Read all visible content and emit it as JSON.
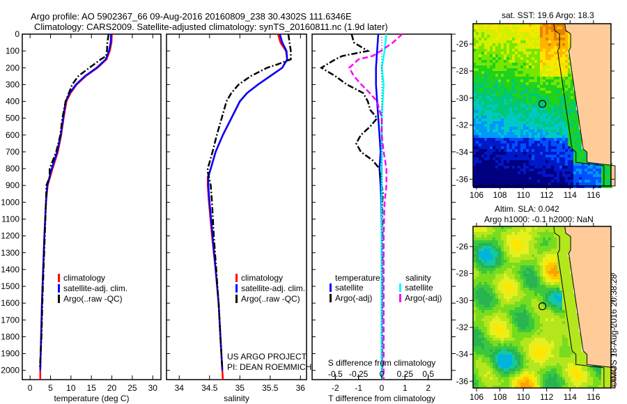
{
  "header": {
    "title_line1": "Argo profile: AO 5902367_66 09-Aug-2016 20160809_238 30.4302S 111.6346E",
    "title_line2": "Climatology: CARS2009. Satellite-adjusted climatology: synTS_20160811.nc (1.9d later)"
  },
  "colors": {
    "climatology": "#ff0000",
    "satellite": "#0000ff",
    "argo": "#000000",
    "sal_satellite": "#00ffff",
    "sal_argo": "#ff00ff",
    "land": "#ffcc99"
  },
  "chart_data": [
    {
      "type": "line",
      "title": "",
      "xlabel": "temperature (deg C)",
      "ylabel": "",
      "xlim": [
        -1.9,
        32.0
      ],
      "ylim": [
        2055,
        0
      ],
      "xticks": [
        0,
        5,
        10,
        15,
        20,
        25,
        30
      ],
      "yticks": [
        0,
        100,
        200,
        300,
        400,
        500,
        600,
        700,
        800,
        900,
        1000,
        1100,
        1200,
        1300,
        1400,
        1500,
        1600,
        1700,
        1800,
        1900,
        2000
      ],
      "legend": {
        "position": "center",
        "entries": [
          "climatology",
          "satellite-adj. clim.",
          "Argo(..raw -QC)"
        ]
      },
      "series": [
        {
          "name": "climatology",
          "style": "solid",
          "depth": [
            0,
            50,
            100,
            150,
            200,
            250,
            300,
            350,
            400,
            500,
            600,
            700,
            800,
            900,
            1000,
            1200,
            1400,
            1600,
            1800,
            2000,
            2055
          ],
          "values": [
            20.0,
            19.9,
            19.5,
            18.7,
            16.5,
            13.6,
            11.4,
            9.9,
            8.9,
            8.2,
            7.6,
            6.8,
            5.5,
            4.3,
            3.9,
            3.5,
            3.2,
            2.9,
            2.7,
            2.5,
            2.5
          ]
        },
        {
          "name": "satellite-adj. clim.",
          "style": "solid",
          "depth": [
            0,
            50,
            100,
            150,
            200,
            250,
            300,
            350,
            400,
            500,
            600,
            700,
            800,
            900,
            1000,
            1200,
            1400,
            1600,
            1800,
            2000
          ],
          "values": [
            19.8,
            19.7,
            19.3,
            18.5,
            16.3,
            13.4,
            11.2,
            9.7,
            8.7,
            8.1,
            7.5,
            6.6,
            5.3,
            4.2,
            3.9,
            3.5,
            3.2,
            2.9,
            2.7,
            2.5
          ]
        },
        {
          "name": "Argo(..raw -QC)",
          "style": "dashdot",
          "depth": [
            0,
            50,
            100,
            130,
            150,
            200,
            250,
            300,
            350,
            400,
            500,
            600,
            700,
            750,
            800,
            850,
            900,
            1000,
            1200,
            1400,
            1600,
            1800,
            1990
          ],
          "values": [
            19.2,
            18.9,
            18.8,
            18.6,
            17.3,
            14.5,
            11.8,
            10.3,
            9.5,
            8.7,
            7.9,
            7.4,
            6.4,
            5.6,
            4.8,
            4.8,
            4.0,
            3.9,
            3.6,
            3.3,
            3.0,
            2.8,
            2.4
          ]
        }
      ]
    },
    {
      "type": "line",
      "title": "",
      "xlabel": "salinity",
      "ylabel": "",
      "xlim": [
        33.79,
        36.1
      ],
      "ylim": [
        2055,
        0
      ],
      "xticks": [
        34,
        34.5,
        35,
        35.5,
        36
      ],
      "legend": {
        "position": "center-right",
        "entries": [
          "climatology",
          "satellite-adj. clim.",
          "Argo(..raw -QC)"
        ]
      },
      "annotation": [
        "US ARGO PROJECT",
        "PI: DEAN ROEMMICH"
      ],
      "series": [
        {
          "name": "climatology",
          "style": "solid",
          "depth": [
            0,
            50,
            100,
            150,
            200,
            250,
            300,
            350,
            400,
            500,
            600,
            700,
            800,
            850,
            900,
            1000,
            1200,
            1400,
            1600,
            1800,
            2000,
            2055
          ],
          "values": [
            35.63,
            35.67,
            35.76,
            35.78,
            35.7,
            35.5,
            35.3,
            35.12,
            35.0,
            34.86,
            34.72,
            34.6,
            34.52,
            34.47,
            34.47,
            34.49,
            34.54,
            34.6,
            34.65,
            34.68,
            34.71,
            34.72
          ]
        },
        {
          "name": "satellite-adj. clim.",
          "style": "solid",
          "depth": [
            0,
            50,
            100,
            150,
            200,
            250,
            300,
            350,
            400,
            500,
            600,
            700,
            800,
            850,
            900,
            1000,
            1200,
            1400,
            1600,
            1800,
            2000
          ],
          "values": [
            35.66,
            35.7,
            35.77,
            35.78,
            35.7,
            35.5,
            35.3,
            35.12,
            35.0,
            34.86,
            34.72,
            34.6,
            34.52,
            34.48,
            34.48,
            34.5,
            34.55,
            34.6,
            34.65,
            34.68,
            34.71
          ]
        },
        {
          "name": "Argo(..raw -QC)",
          "style": "dashdot",
          "depth": [
            0,
            50,
            100,
            150,
            180,
            200,
            250,
            300,
            350,
            400,
            500,
            600,
            700,
            800,
            820,
            850,
            900,
            1000,
            1200,
            1400,
            1600,
            1800,
            1990
          ],
          "values": [
            35.8,
            35.82,
            35.84,
            35.84,
            35.62,
            35.45,
            35.18,
            34.98,
            34.86,
            34.78,
            34.7,
            34.62,
            34.55,
            34.47,
            34.47,
            34.49,
            34.52,
            34.54,
            34.57,
            34.61,
            34.65,
            34.68,
            34.71
          ]
        }
      ]
    },
    {
      "type": "line",
      "title": "",
      "xlabel": "T difference from climatology",
      "xlabel_top": "S difference from climatology",
      "xlim": [
        -3.0,
        3.0
      ],
      "xlim_salinity": [
        -0.75,
        0.75
      ],
      "ylim": [
        2055,
        0
      ],
      "xticks": [
        -2,
        -1,
        0,
        1,
        2
      ],
      "xticks_salinity": [
        -0.5,
        -0.25,
        0,
        0.25,
        0.5
      ],
      "xticklabels_salinity": [
        "-0.5",
        "-0.25",
        "0",
        "0.25",
        "0.5"
      ],
      "legend": {
        "position": "bottom-center",
        "groups": [
          {
            "header": "temperature",
            "entries": [
              "satellite",
              "Argo(-adj)"
            ]
          },
          {
            "header": "salinity",
            "entries": [
              "satellite",
              "Argo(-adj)"
            ]
          }
        ]
      },
      "series": [
        {
          "name": "temperature satellite",
          "axis": "T",
          "style": "solid",
          "depth": [
            0,
            100,
            200,
            300,
            400,
            500,
            600,
            700,
            800,
            900,
            1000,
            1200,
            1400,
            1600,
            1800,
            2000
          ],
          "values": [
            -0.15,
            -0.2,
            -0.25,
            -0.25,
            -0.2,
            -0.15,
            -0.1,
            -0.05,
            -0.1,
            -0.05,
            -0.02,
            0,
            0,
            0,
            0,
            0
          ]
        },
        {
          "name": "temperature Argo(-adj)",
          "axis": "T",
          "style": "dashdot",
          "depth": [
            0,
            50,
            100,
            130,
            150,
            200,
            250,
            300,
            350,
            400,
            450,
            500,
            550,
            600,
            650,
            700,
            750,
            800,
            850,
            900,
            950,
            1000,
            1200,
            1400,
            1600,
            1800,
            2000
          ],
          "values": [
            -1.3,
            -1.2,
            -0.6,
            -1.7,
            -2.0,
            -2.6,
            -2.0,
            -1.5,
            -0.8,
            -0.6,
            -0.5,
            -0.2,
            -0.5,
            -0.9,
            -1.1,
            -0.9,
            -0.4,
            -0.1,
            -0.05,
            0.0,
            0.05,
            0.02,
            0.03,
            0.03,
            0.02,
            0.02,
            0.02
          ]
        },
        {
          "name": "salinity satellite",
          "axis": "S",
          "style": "solid",
          "depth": [
            0,
            100,
            200,
            300,
            400,
            500,
            600,
            700,
            800,
            900,
            1000,
            1200,
            1400,
            1600,
            1800,
            2000,
            2055
          ],
          "values": [
            0.05,
            0.03,
            0.0,
            0.02,
            0.01,
            0.0,
            0.0,
            0.0,
            0.0,
            0.0,
            0.0,
            0.0,
            0.0,
            0.0,
            0.0,
            0.0,
            0.0
          ]
        },
        {
          "name": "salinity Argo(-adj)",
          "axis": "S",
          "style": "dashed",
          "depth": [
            0,
            50,
            100,
            130,
            150,
            200,
            250,
            300,
            350,
            400,
            500,
            600,
            700,
            800,
            900,
            1000,
            1200,
            1400,
            1600,
            1800,
            2000,
            2055
          ],
          "values": [
            0.22,
            0.12,
            -0.01,
            -0.1,
            -0.25,
            -0.35,
            -0.3,
            -0.22,
            -0.13,
            -0.05,
            0.0,
            0.0,
            0.02,
            0.05,
            0.05,
            0.03,
            0.02,
            0.02,
            0.02,
            0.02,
            0.02,
            0.02
          ]
        }
      ]
    },
    {
      "type": "heatmap",
      "title": "sat. SST: 19.6 Argo: 18.3",
      "xlim": [
        105.7,
        117.5
      ],
      "ylim": [
        -36.5,
        -24.5
      ],
      "xticks": [
        106,
        108,
        110,
        112,
        114,
        116
      ],
      "yticks": [
        -26,
        -28,
        -30,
        -32,
        -34,
        -36
      ],
      "marker": {
        "lon": 111.63,
        "lat": -30.43
      }
    },
    {
      "type": "heatmap",
      "title": "Altim. SLA: 0.042",
      "subtitle": "Argo h1000: -0.1 h2000: NaN",
      "xlim": [
        105.7,
        117.5
      ],
      "ylim": [
        -36.5,
        -24.5
      ],
      "xticks": [
        106,
        108,
        110,
        112,
        114,
        116
      ],
      "yticks": [
        -26,
        -28,
        -30,
        -32,
        -34,
        -36
      ],
      "marker": {
        "lon": 111.63,
        "lat": -30.43
      }
    }
  ],
  "footer": {
    "stamp": "©IMOS 18-Aug-2016 20:38:28"
  }
}
